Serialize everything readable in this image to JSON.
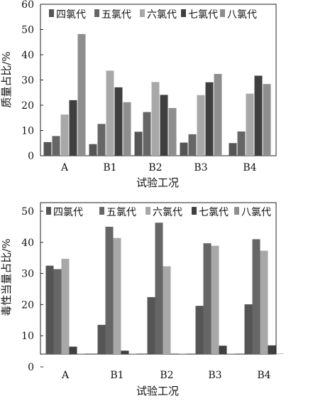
{
  "chart_data": [
    {
      "type": "bar",
      "categories": [
        "A",
        "B1",
        "B2",
        "B3",
        "B4"
      ],
      "xlabel": "试验工况",
      "ylabel": "质量占比/%",
      "ylim": [
        0,
        60
      ],
      "yticks": [
        0,
        10,
        20,
        30,
        40,
        50,
        60
      ],
      "legend_position": "top",
      "series": [
        {
          "name": "四氯代",
          "color": "#555555",
          "values": [
            5.4,
            4.6,
            9.5,
            5.2,
            5.0
          ]
        },
        {
          "name": "五氯代",
          "color": "#666666",
          "values": [
            7.8,
            12.6,
            17.3,
            8.5,
            9.6
          ]
        },
        {
          "name": "六氯代",
          "color": "#a8a8a8",
          "values": [
            16.3,
            33.7,
            29.2,
            24.0,
            24.6
          ]
        },
        {
          "name": "七氯代",
          "color": "#3f3f3f",
          "values": [
            22.0,
            27.1,
            24.1,
            29.1,
            31.7
          ]
        },
        {
          "name": "八氯代",
          "color": "#8e8e8e",
          "values": [
            48.2,
            21.2,
            18.9,
            32.4,
            28.4
          ]
        }
      ]
    },
    {
      "type": "bar",
      "categories": [
        "A",
        "B1",
        "B2",
        "B3",
        "B4"
      ],
      "xlabel": "试验工况",
      "ylabel": "毒性当量占比/%",
      "ylim": [
        0,
        50
      ],
      "yticks": [
        0,
        10,
        20,
        30,
        40,
        50
      ],
      "legend_position": "top",
      "series": [
        {
          "name": "四氯代",
          "color": "#555555",
          "values": [
            32.5,
            13.5,
            22.4,
            19.6,
            20.1
          ]
        },
        {
          "name": "五氯代",
          "color": "#666666",
          "values": [
            31.4,
            45.0,
            46.3,
            39.7,
            41.0
          ]
        },
        {
          "name": "六氯代",
          "color": "#a8a8a8",
          "values": [
            34.7,
            41.4,
            32.3,
            38.9,
            37.3
          ]
        },
        {
          "name": "七氯代",
          "color": "#3f3f3f",
          "values": [
            6.5,
            5.2,
            4.0,
            6.8,
            6.9
          ]
        },
        {
          "name": "八氯代",
          "color": "#8e8e8e",
          "values": [
            1.8,
            0.2,
            0.2,
            0.5,
            0.3
          ]
        }
      ]
    }
  ]
}
